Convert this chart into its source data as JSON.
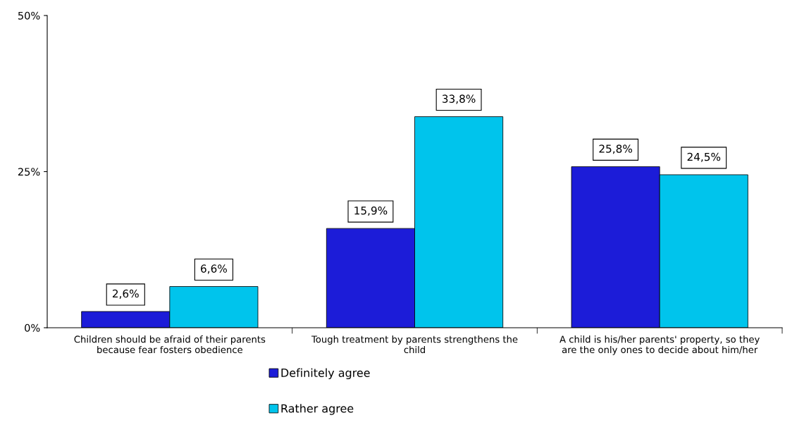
{
  "chart_data": {
    "type": "bar",
    "categories": [
      "Children should be afraid of their parents\nbecause fear fosters obedience",
      "Tough treatment by parents strengthens the\nchild",
      "A child is his/her parents' property, so they\nare the only ones to decide about him/her"
    ],
    "series": [
      {
        "name": "Definitely agree",
        "color": "#1c1cd8",
        "values": [
          2.6,
          15.9,
          25.8
        ],
        "value_labels": [
          "2,6%",
          "15,9%",
          "25,8%"
        ]
      },
      {
        "name": "Rather agree",
        "color": "#00c4ec",
        "values": [
          6.6,
          33.8,
          24.5
        ],
        "value_labels": [
          "6,6%",
          "33,8%",
          "24,5%"
        ]
      }
    ],
    "ylim": [
      0,
      50
    ],
    "yticks": [
      {
        "value": 0,
        "label": "0%"
      },
      {
        "value": 25,
        "label": "25%"
      },
      {
        "value": 50,
        "label": "50%"
      }
    ],
    "grid": false,
    "legend": "bottom"
  }
}
